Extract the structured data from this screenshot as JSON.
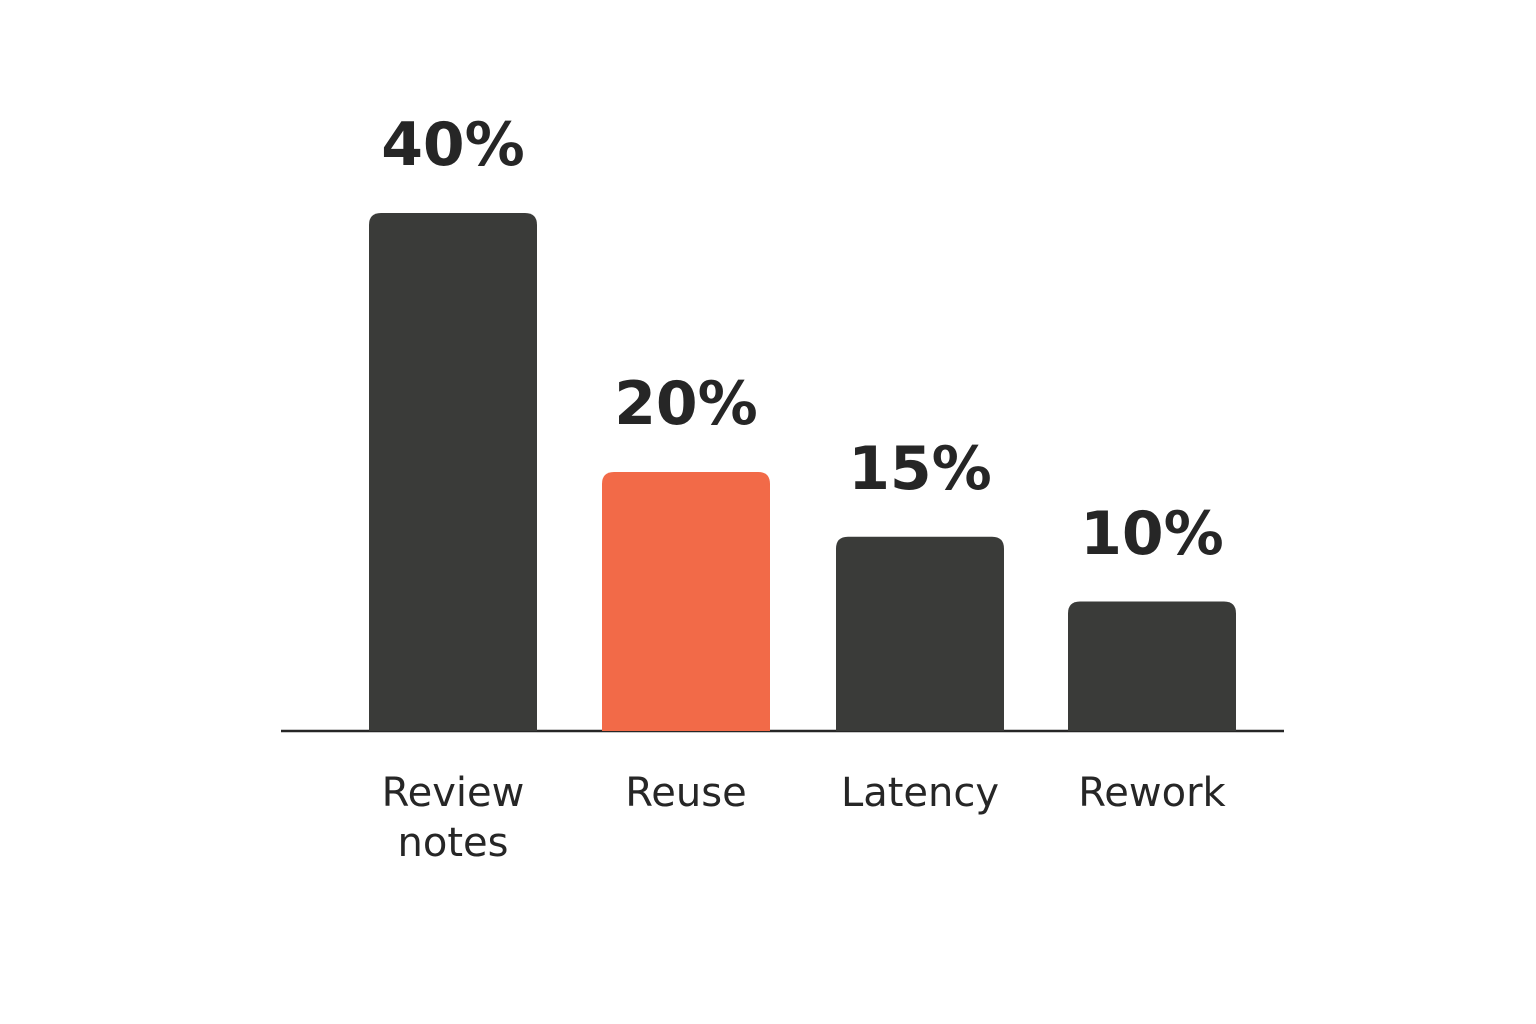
{
  "chart_data": {
    "type": "bar",
    "categories": [
      "Review notes",
      "Reuse",
      "Latency",
      "Rework"
    ],
    "values": [
      40,
      20,
      15,
      10
    ],
    "value_labels": [
      "40%",
      "20%",
      "15%",
      "10%"
    ],
    "colors": [
      "#3a3b39",
      "#f26a48",
      "#3a3b39",
      "#3a3b39"
    ]
  }
}
